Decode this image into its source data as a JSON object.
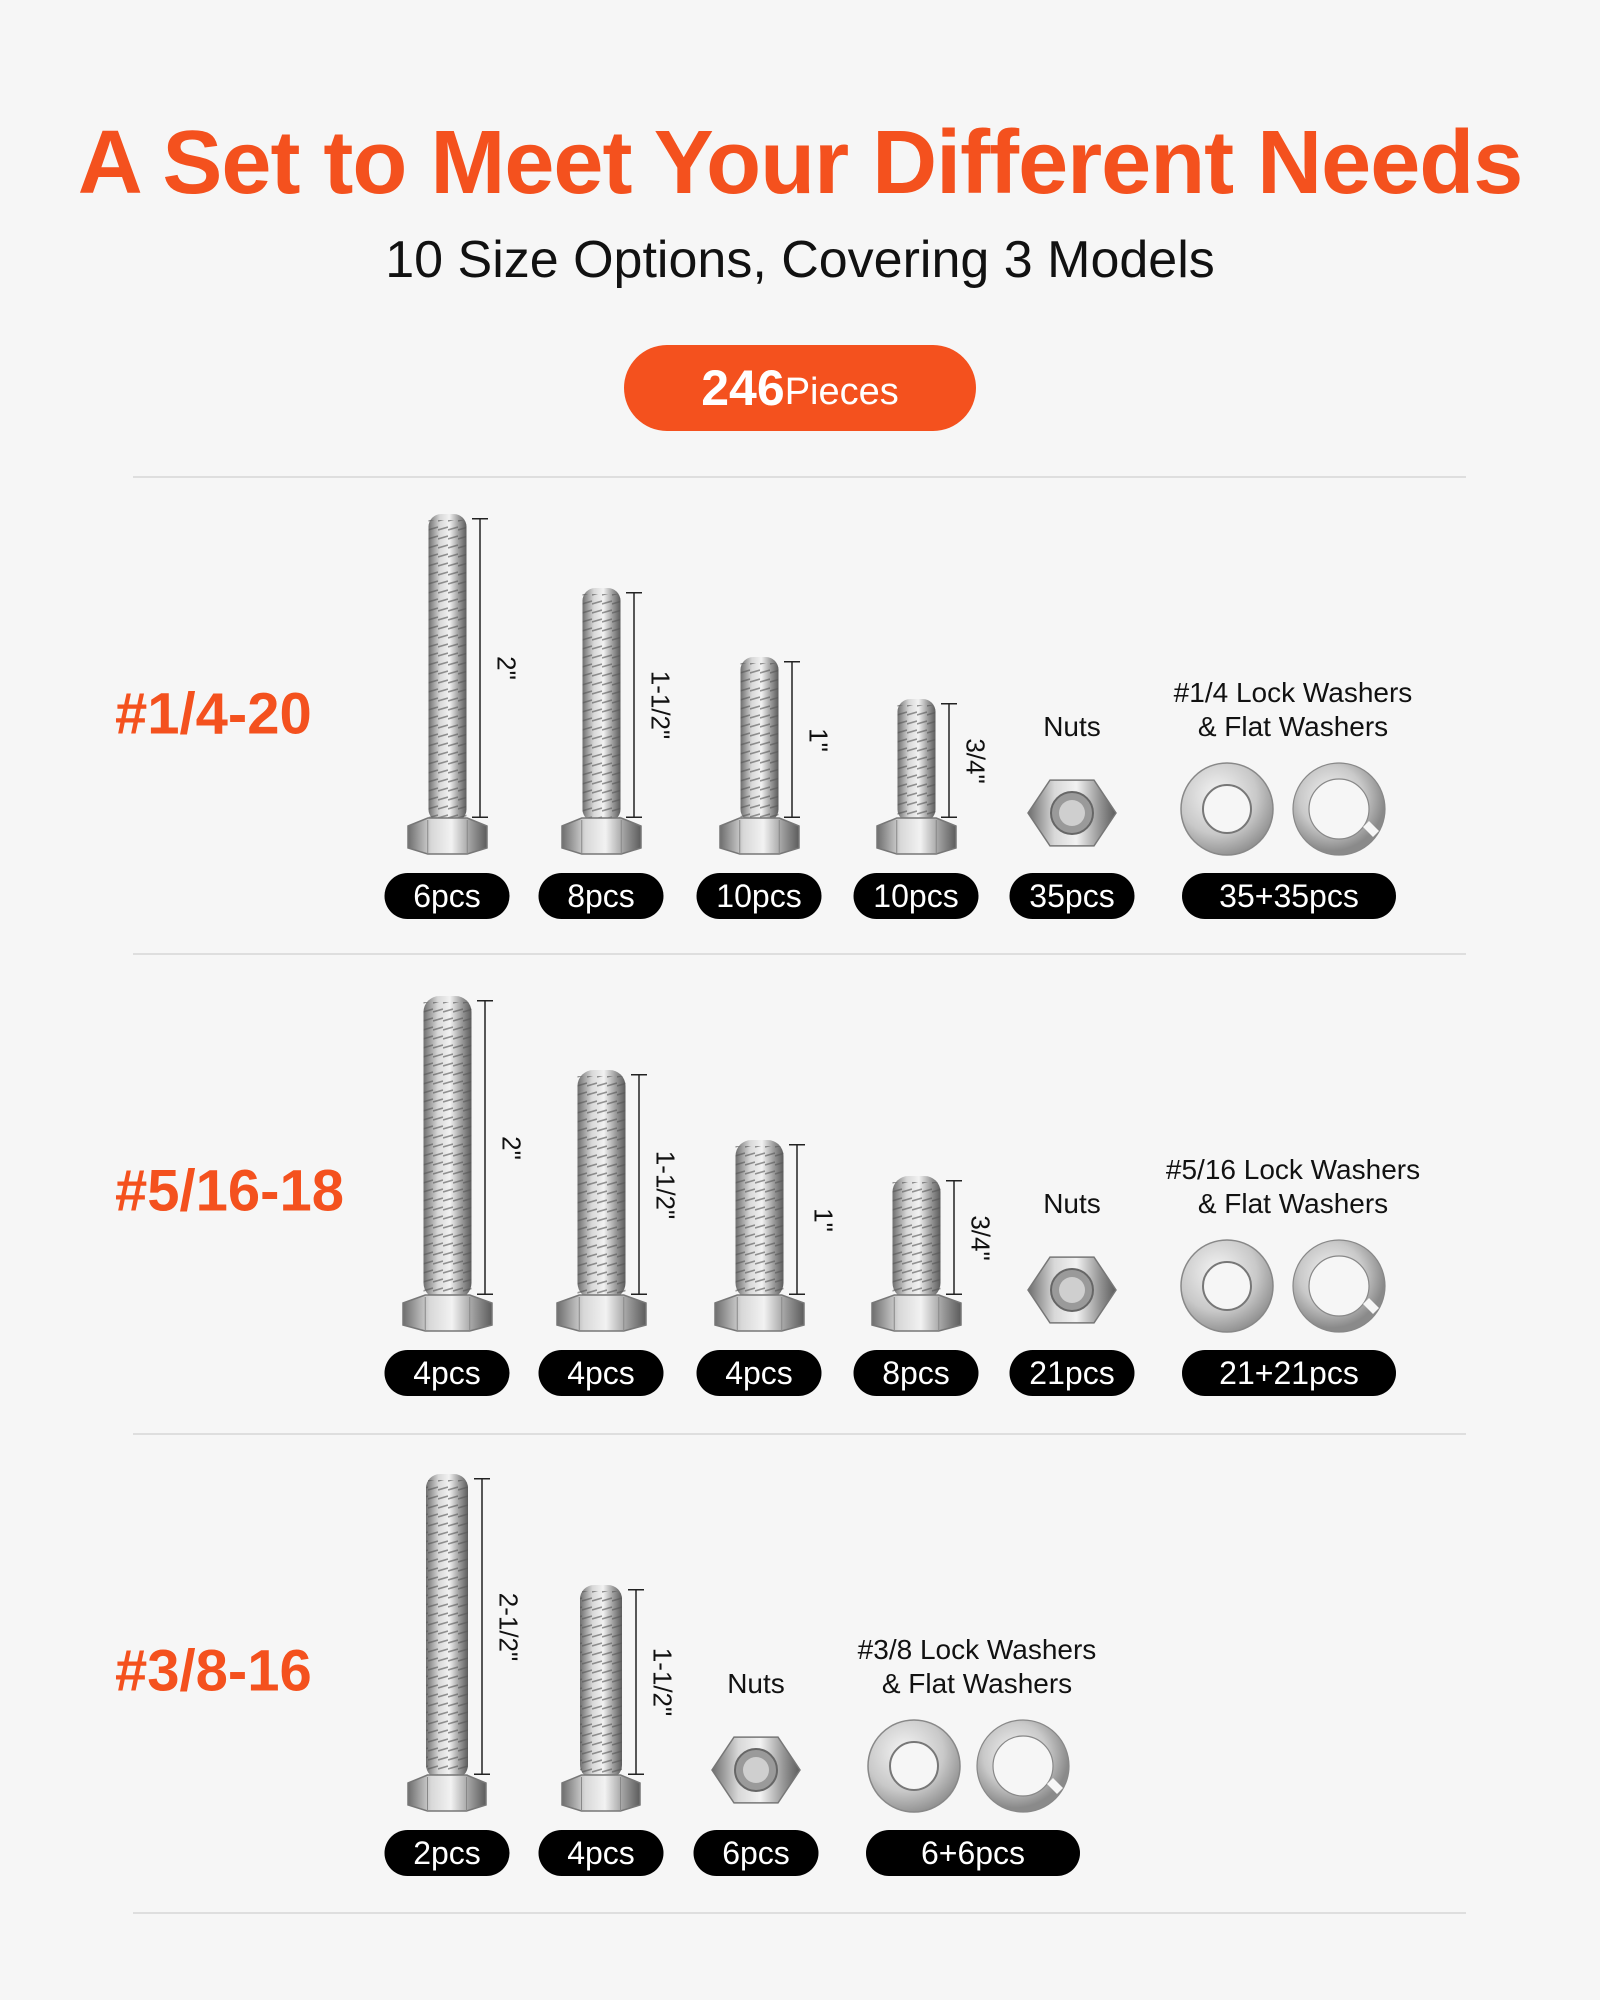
{
  "header": {
    "title": "A Set to Meet Your Different Needs",
    "subtitle": "10 Size Options, Covering 3 Models",
    "total_count": "246",
    "total_unit": "Pieces"
  },
  "colors": {
    "accent": "#f4511e",
    "badge": "#000000",
    "background": "#f6f6f6"
  },
  "rows": [
    {
      "label": "#1/4-20",
      "bolts": [
        {
          "size": "2\"",
          "qty": "6pcs"
        },
        {
          "size": "1-1/2\"",
          "qty": "8pcs"
        },
        {
          "size": "1\"",
          "qty": "10pcs"
        },
        {
          "size": "3/4\"",
          "qty": "10pcs"
        }
      ],
      "nuts": {
        "caption": "Nuts",
        "qty": "35pcs"
      },
      "washers": {
        "caption_line1": "#1/4 Lock Washers",
        "caption_line2": "& Flat Washers",
        "qty": "35+35pcs"
      }
    },
    {
      "label": "#5/16-18",
      "bolts": [
        {
          "size": "2\"",
          "qty": "4pcs"
        },
        {
          "size": "1-1/2\"",
          "qty": "4pcs"
        },
        {
          "size": "1\"",
          "qty": "4pcs"
        },
        {
          "size": "3/4\"",
          "qty": "8pcs"
        }
      ],
      "nuts": {
        "caption": "Nuts",
        "qty": "21pcs"
      },
      "washers": {
        "caption_line1": "#5/16 Lock Washers",
        "caption_line2": "& Flat Washers",
        "qty": "21+21pcs"
      }
    },
    {
      "label": "#3/8-16",
      "bolts": [
        {
          "size": "2-1/2\"",
          "qty": "2pcs"
        },
        {
          "size": "1-1/2\"",
          "qty": "4pcs"
        }
      ],
      "nuts": {
        "caption": "Nuts",
        "qty": "6pcs"
      },
      "washers": {
        "caption_line1": "#3/8 Lock Washers",
        "caption_line2": "& Flat Washers",
        "qty": "6+6pcs"
      }
    }
  ]
}
